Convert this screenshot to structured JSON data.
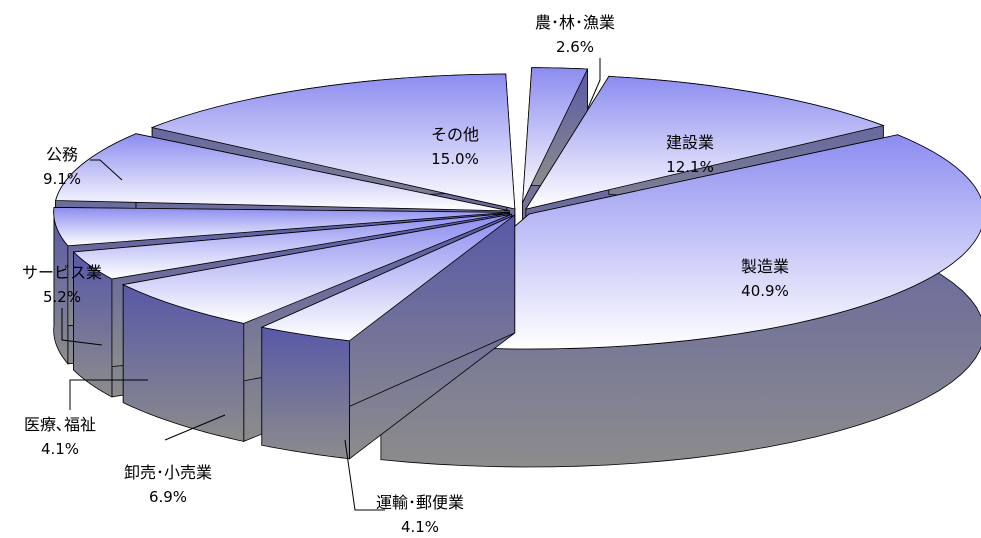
{
  "chart_data": {
    "type": "pie",
    "style": "3d-exploded",
    "slices": [
      {
        "name": "農･林･漁業",
        "value": 2.6,
        "label": "2.6%"
      },
      {
        "name": "建設業",
        "value": 12.1,
        "label": "12.1%"
      },
      {
        "name": "製造業",
        "value": 40.9,
        "label": "40.9%"
      },
      {
        "name": "運輸･郵便業",
        "value": 4.1,
        "label": "4.1%"
      },
      {
        "name": "卸売･小売業",
        "value": 6.9,
        "label": "6.9%"
      },
      {
        "name": "医療､福祉",
        "value": 4.1,
        "label": "4.1%"
      },
      {
        "name": "サービス業",
        "value": 5.2,
        "label": "5.2%"
      },
      {
        "name": "公務",
        "value": 9.1,
        "label": "9.1%"
      },
      {
        "name": "その他",
        "value": 15.0,
        "label": "15.0%"
      }
    ],
    "colors": {
      "top_light": "#ffffff",
      "top_dark": "#8c8cf0",
      "side_top": "#5858a8",
      "side_bottom": "#8c8c8c",
      "outline": "#000000"
    }
  }
}
